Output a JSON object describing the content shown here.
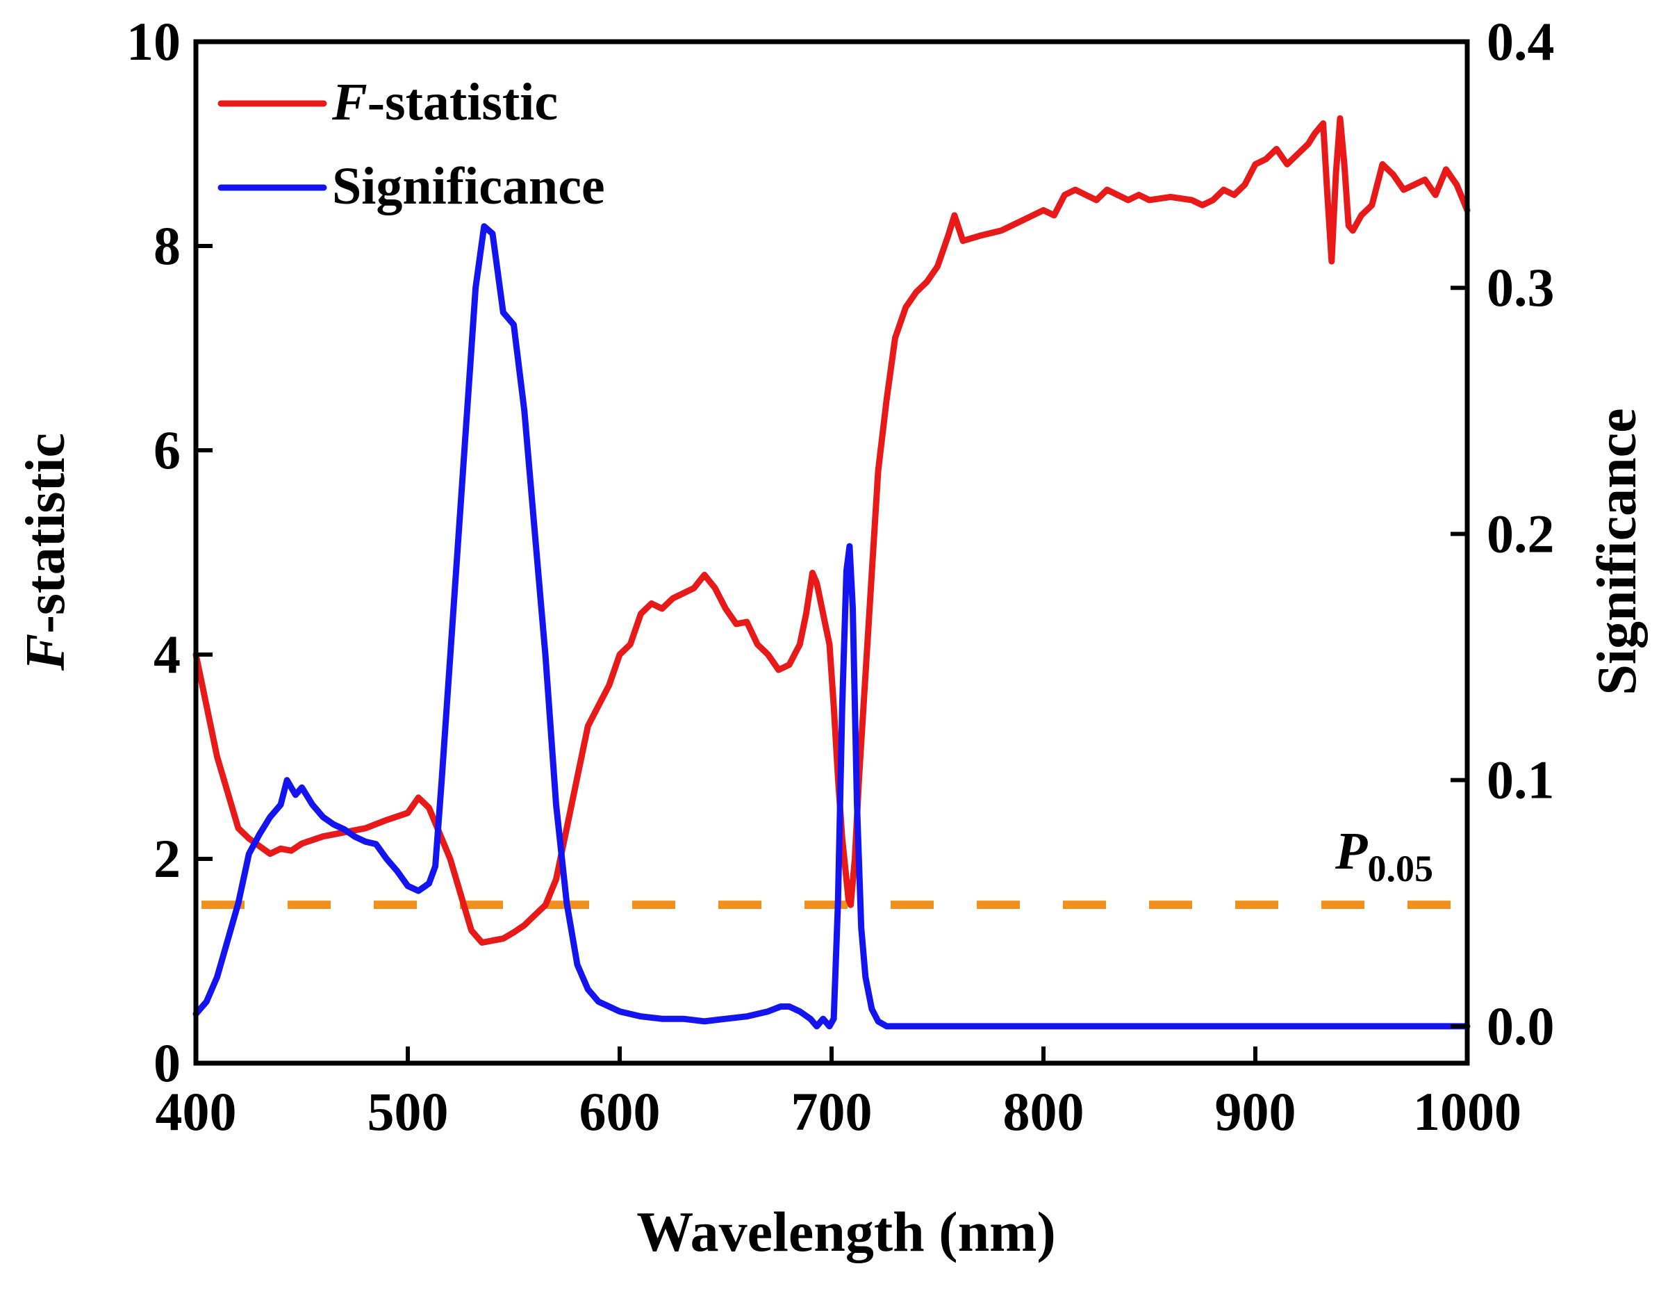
{
  "chart_data": {
    "type": "line",
    "title": "",
    "xlabel": "Wavelength (nm)",
    "ylabel_left_italic": "F",
    "ylabel_left_rest": "-statistic",
    "ylabel_right": "Significance",
    "xlim": [
      400,
      1000
    ],
    "ylim_left": [
      0,
      10
    ],
    "ylim_right": [
      -0.015,
      0.4
    ],
    "x_ticks": [
      400,
      500,
      600,
      700,
      800,
      900,
      1000
    ],
    "x_tick_labels": [
      "400",
      "500",
      "600",
      "700",
      "800",
      "900",
      "1000"
    ],
    "y_left_ticks": [
      0,
      2,
      4,
      6,
      8,
      10
    ],
    "y_left_tick_labels": [
      "0",
      "2",
      "4",
      "6",
      "8",
      "10"
    ],
    "y_right_ticks": [
      0.0,
      0.1,
      0.2,
      0.3,
      0.4
    ],
    "y_right_tick_labels": [
      "0.0",
      "0.1",
      "0.2",
      "0.3",
      "0.4"
    ],
    "legend": {
      "position": "top-left"
    },
    "series": [
      {
        "name_italic": "F",
        "name_rest": "-statistic",
        "axis": "left",
        "color": "#e81919",
        "x": [
          400,
          410,
          420,
          425,
          435,
          440,
          445,
          450,
          460,
          470,
          480,
          490,
          500,
          505,
          510,
          520,
          530,
          535,
          540,
          545,
          550,
          555,
          560,
          565,
          570,
          575,
          580,
          585,
          590,
          595,
          600,
          605,
          610,
          615,
          620,
          625,
          630,
          635,
          640,
          645,
          650,
          655,
          660,
          665,
          670,
          675,
          680,
          685,
          688,
          691,
          693,
          695,
          697,
          699,
          701,
          703,
          705,
          707,
          708,
          709,
          711,
          713,
          716,
          719,
          722,
          726,
          730,
          735,
          740,
          745,
          750,
          755,
          758,
          762,
          770,
          780,
          790,
          800,
          805,
          810,
          815,
          820,
          825,
          830,
          840,
          845,
          850,
          860,
          870,
          875,
          880,
          885,
          890,
          895,
          900,
          905,
          910,
          915,
          920,
          925,
          928,
          932,
          934,
          936,
          938,
          940,
          942,
          944,
          946,
          950,
          955,
          960,
          965,
          970,
          975,
          980,
          985,
          990,
          995,
          1000
        ],
        "y": [
          4.0,
          3.0,
          2.3,
          2.2,
          2.05,
          2.1,
          2.08,
          2.15,
          2.22,
          2.26,
          2.3,
          2.38,
          2.45,
          2.6,
          2.5,
          2.0,
          1.3,
          1.18,
          1.2,
          1.22,
          1.28,
          1.35,
          1.45,
          1.55,
          1.8,
          2.3,
          2.8,
          3.3,
          3.5,
          3.7,
          4.0,
          4.1,
          4.4,
          4.5,
          4.45,
          4.55,
          4.6,
          4.65,
          4.78,
          4.65,
          4.45,
          4.3,
          4.32,
          4.1,
          4.0,
          3.85,
          3.9,
          4.1,
          4.4,
          4.8,
          4.7,
          4.5,
          4.3,
          4.1,
          3.5,
          2.8,
          2.2,
          1.8,
          1.6,
          1.55,
          2.0,
          2.8,
          3.8,
          4.8,
          5.8,
          6.5,
          7.1,
          7.4,
          7.55,
          7.65,
          7.8,
          8.1,
          8.3,
          8.05,
          8.1,
          8.15,
          8.25,
          8.35,
          8.3,
          8.5,
          8.55,
          8.5,
          8.45,
          8.55,
          8.45,
          8.5,
          8.45,
          8.48,
          8.45,
          8.4,
          8.45,
          8.55,
          8.5,
          8.6,
          8.8,
          8.85,
          8.95,
          8.8,
          8.9,
          9.0,
          9.1,
          9.2,
          8.5,
          7.85,
          8.7,
          9.25,
          8.8,
          8.2,
          8.15,
          8.3,
          8.4,
          8.8,
          8.7,
          8.55,
          8.6,
          8.65,
          8.5,
          8.75,
          8.6,
          8.35
        ]
      },
      {
        "name": "Significance",
        "axis": "right",
        "color": "#1414f0",
        "x": [
          400,
          405,
          410,
          415,
          420,
          425,
          430,
          435,
          440,
          443,
          447,
          450,
          455,
          460,
          465,
          470,
          475,
          480,
          485,
          490,
          495,
          500,
          505,
          510,
          513,
          516,
          520,
          524,
          528,
          532,
          536,
          540,
          545,
          550,
          555,
          560,
          565,
          570,
          575,
          580,
          585,
          590,
          595,
          600,
          610,
          620,
          630,
          640,
          650,
          660,
          670,
          676,
          680,
          685,
          690,
          693,
          696,
          699,
          701,
          703,
          705,
          707,
          708.5,
          710,
          712,
          714,
          716,
          719,
          722,
          726,
          730,
          735,
          740,
          800,
          900,
          1000
        ],
        "y": [
          0.005,
          0.01,
          0.02,
          0.035,
          0.05,
          0.07,
          0.078,
          0.085,
          0.09,
          0.1,
          0.094,
          0.097,
          0.09,
          0.085,
          0.082,
          0.08,
          0.077,
          0.075,
          0.074,
          0.068,
          0.063,
          0.057,
          0.055,
          0.058,
          0.065,
          0.1,
          0.15,
          0.2,
          0.25,
          0.3,
          0.325,
          0.322,
          0.29,
          0.285,
          0.25,
          0.2,
          0.15,
          0.09,
          0.05,
          0.025,
          0.015,
          0.01,
          0.008,
          0.006,
          0.004,
          0.003,
          0.003,
          0.002,
          0.003,
          0.004,
          0.006,
          0.008,
          0.008,
          0.006,
          0.003,
          0.0,
          0.003,
          0.0,
          0.003,
          0.05,
          0.13,
          0.185,
          0.195,
          0.17,
          0.09,
          0.04,
          0.02,
          0.007,
          0.002,
          0.0,
          0.0,
          0.0,
          0.0,
          0.0,
          0.0,
          0.0
        ]
      }
    ],
    "threshold": {
      "label_main": "P",
      "label_sub": "0.05",
      "axis": "left",
      "value": 1.55,
      "color": "#f0901e",
      "style": "dashed"
    }
  }
}
